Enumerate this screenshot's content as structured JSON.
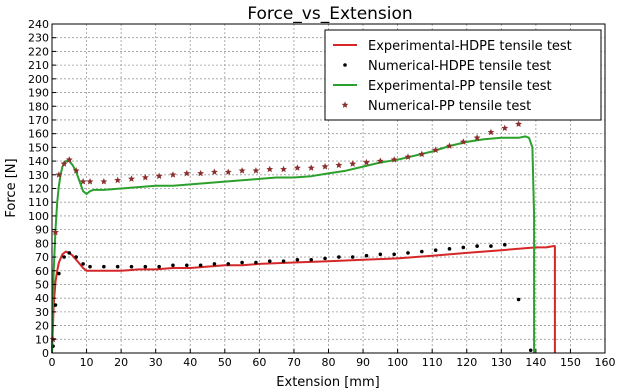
{
  "chart_data": {
    "type": "line",
    "title": "Force_vs_Extension",
    "xlabel": "Extension [mm]",
    "ylabel": "Force [N]",
    "xlim": [
      0,
      160
    ],
    "ylim": [
      0,
      240
    ],
    "xticks": [
      0,
      10,
      20,
      30,
      40,
      50,
      60,
      70,
      80,
      90,
      100,
      110,
      120,
      130,
      140,
      150,
      160
    ],
    "yticks": [
      0,
      10,
      20,
      30,
      40,
      50,
      60,
      70,
      80,
      90,
      100,
      110,
      120,
      130,
      140,
      150,
      160,
      170,
      180,
      190,
      200,
      210,
      220,
      230,
      240
    ],
    "grid": true,
    "legend_position": "top-right",
    "series": [
      {
        "name": "Experimental-HDPE tensile test",
        "style": "line",
        "color": "#d62728",
        "x": [
          0,
          0.5,
          1,
          1.5,
          2,
          3,
          4,
          5,
          6,
          7,
          8,
          9,
          10,
          12,
          15,
          20,
          25,
          30,
          35,
          40,
          45,
          50,
          55,
          60,
          70,
          80,
          90,
          100,
          110,
          120,
          130,
          135,
          140,
          143,
          145,
          145.5,
          145.5
        ],
        "y": [
          0,
          35,
          52,
          60,
          66,
          72,
          74,
          73,
          71,
          68,
          65,
          62,
          60,
          60,
          60,
          60,
          61,
          61,
          62,
          62,
          63,
          64,
          64,
          65,
          66,
          67,
          68,
          69,
          71,
          73,
          75,
          76,
          77,
          77,
          78,
          78,
          0
        ]
      },
      {
        "name": "Numerical-HDPE tensile test",
        "style": "dots",
        "color": "#000000",
        "x": [
          0.3,
          1,
          2,
          3.5,
          5,
          7,
          9,
          11,
          15,
          19,
          23,
          27,
          31,
          35,
          39,
          43,
          47,
          51,
          55,
          59,
          63,
          67,
          71,
          75,
          79,
          83,
          87,
          91,
          95,
          99,
          103,
          107,
          111,
          115,
          119,
          123,
          127,
          131,
          135,
          138.5
        ],
        "y": [
          5,
          35,
          58,
          70,
          73,
          70,
          65,
          63,
          63,
          63,
          63,
          63,
          63,
          64,
          64,
          64,
          65,
          65,
          66,
          66,
          67,
          67,
          68,
          68,
          69,
          70,
          70,
          71,
          72,
          72,
          73,
          74,
          75,
          76,
          77,
          78,
          78,
          79,
          39,
          2
        ]
      },
      {
        "name": "Experimental-PP tensile test",
        "style": "line",
        "color": "#2ca02c",
        "x": [
          0,
          0.5,
          1,
          1.5,
          2,
          2.5,
          3,
          4,
          5,
          6,
          7,
          8,
          9,
          10,
          11,
          12,
          15,
          20,
          25,
          30,
          35,
          40,
          45,
          50,
          55,
          60,
          65,
          70,
          75,
          80,
          85,
          90,
          95,
          100,
          105,
          110,
          115,
          120,
          125,
          130,
          135,
          137,
          138,
          139,
          139.5,
          139.5
        ],
        "y": [
          0,
          60,
          90,
          110,
          122,
          130,
          136,
          140,
          140,
          137,
          132,
          125,
          118,
          116,
          118,
          119,
          119,
          120,
          121,
          122,
          122,
          123,
          124,
          125,
          126,
          127,
          128,
          128,
          129,
          131,
          133,
          136,
          139,
          141,
          144,
          147,
          151,
          154,
          156,
          157,
          157,
          158,
          157,
          150,
          100,
          0
        ]
      },
      {
        "name": "Numerical-PP tensile test",
        "style": "stars",
        "color": "#8b2e2e",
        "x": [
          0.3,
          1,
          2,
          3.5,
          5,
          7,
          9,
          11,
          15,
          19,
          23,
          27,
          31,
          35,
          39,
          43,
          47,
          51,
          55,
          59,
          63,
          67,
          71,
          75,
          79,
          83,
          87,
          91,
          95,
          99,
          103,
          107,
          111,
          115,
          119,
          123,
          127,
          131,
          135
        ],
        "y": [
          10,
          88,
          130,
          138,
          141,
          133,
          125,
          125,
          125,
          126,
          127,
          128,
          129,
          130,
          131,
          131,
          132,
          132,
          133,
          133,
          134,
          134,
          135,
          135,
          136,
          137,
          138,
          139,
          140,
          141,
          143,
          145,
          148,
          151,
          154,
          157,
          161,
          164,
          167
        ]
      }
    ]
  }
}
